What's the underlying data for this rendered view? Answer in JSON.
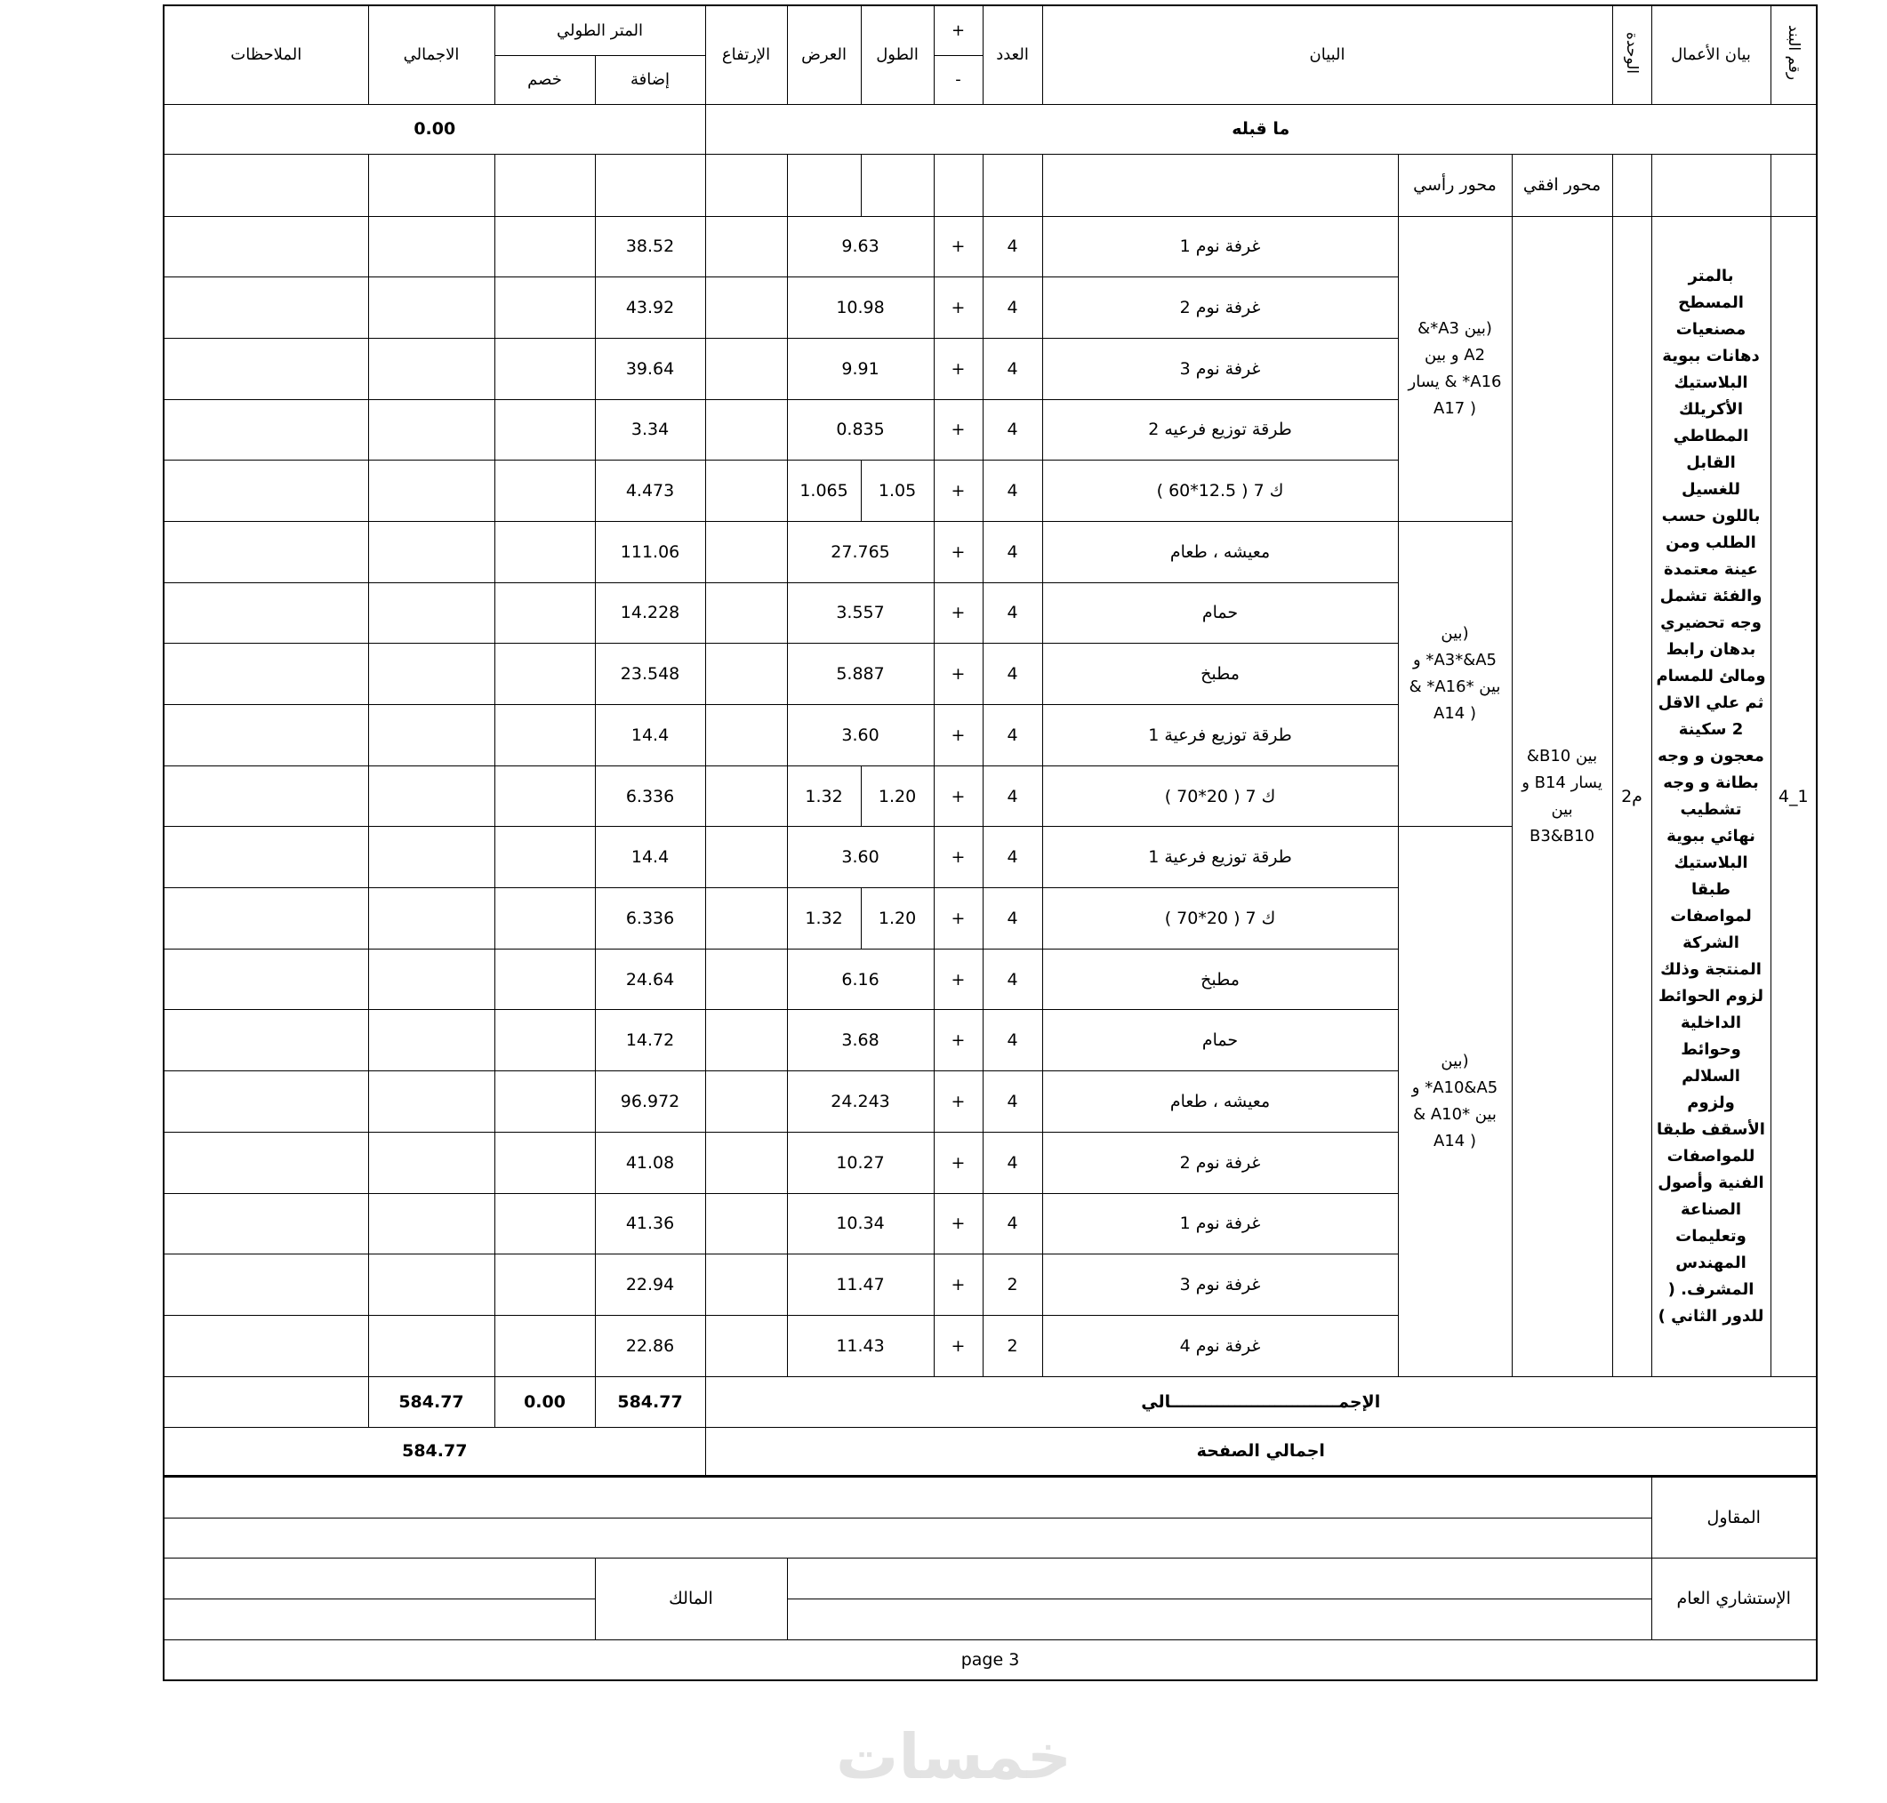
{
  "header": {
    "item_no": "رقم البند",
    "work_description": "بيان الأعمال",
    "unit": "الوحدة",
    "statement": "البيان",
    "count": "العدد",
    "plus": "+",
    "minus": "-",
    "length": "الطول",
    "width": "العرض",
    "height": "الإرتفاع",
    "linear_meter": "المتر الطولي",
    "addition": "إضافة",
    "deduction": "خصم",
    "total": "الاجمالي",
    "notes": "الملاحظات"
  },
  "previous": {
    "label": "ما قبله",
    "value": "0.00"
  },
  "axes_header": {
    "horizontal": "محور افقي",
    "vertical": "محور رأسي"
  },
  "item": {
    "number": "1_4",
    "unit": "م2",
    "description": "بالمتر المسطح مصنعيات دهانات ببوية البلاستيك الأكريلك المطاطي القابل للغسيل باللون حسب الطلب ومن عينة معتمدة والفئة تشمل وجه تحضيري بدهان رابط ومالئ للمسام ثم علي الاقل 2 سكينة معجون و وجه بطانة و وجه تشطيب نهائي ببوية البلاستيك طبقا لمواصفات الشركة المنتجة وذلك لزوم الحوائط الداخلية وحوائط السلالم ولزوم الأسقف طبقا للمواصفات الفنية وأصول الصناعة وتعليمات المهندس المشرف. ( للدور الثاني )",
    "horizontal_axis": "بين B10&\nيسار B14 و\nبين\nB3&B10",
    "vertical_axis_groups": [
      {
        "text": "(بين A3*&\nA2 و  بين\nA16* & يسار\n( A17",
        "rows": 5
      },
      {
        "text": "(بين\nA3*&A5* و\nبين *A16* &\n( A14",
        "rows": 5
      },
      {
        "text": "(بين\nA10&A5* و\nبين *A10 &\n( A14",
        "rows": 9
      }
    ]
  },
  "rows": [
    {
      "desc": "غرفة نوم 1",
      "count": "4",
      "sign": "+",
      "dim": "9.63",
      "add": "38.52"
    },
    {
      "desc": "غرفة نوم 2",
      "count": "4",
      "sign": "+",
      "dim": "10.98",
      "add": "43.92"
    },
    {
      "desc": "غرفة نوم 3",
      "count": "4",
      "sign": "+",
      "dim": "9.91",
      "add": "39.64"
    },
    {
      "desc": "طرقة توزيع فرعيه 2",
      "count": "4",
      "sign": "+",
      "dim": "0.835",
      "add": "3.34"
    },
    {
      "desc": "ك 7 ( 12.5*60 )",
      "count": "4",
      "sign": "+",
      "length": "1.05",
      "width": "1.065",
      "add": "4.473"
    },
    {
      "desc": "معيشه ، طعام",
      "count": "4",
      "sign": "+",
      "dim": "27.765",
      "add": "111.06"
    },
    {
      "desc": "حمام",
      "count": "4",
      "sign": "+",
      "dim": "3.557",
      "add": "14.228"
    },
    {
      "desc": "مطبخ",
      "count": "4",
      "sign": "+",
      "dim": "5.887",
      "add": "23.548"
    },
    {
      "desc": "طرقة توزيع فرعية 1",
      "count": "4",
      "sign": "+",
      "dim": "3.60",
      "add": "14.4"
    },
    {
      "desc": "ك 7 ( 20*70 )",
      "count": "4",
      "sign": "+",
      "length": "1.20",
      "width": "1.32",
      "add": "6.336"
    },
    {
      "desc": "طرقة توزيع فرعية 1",
      "count": "4",
      "sign": "+",
      "dim": "3.60",
      "add": "14.4"
    },
    {
      "desc": "ك 7 ( 20*70 )",
      "count": "4",
      "sign": "+",
      "length": "1.20",
      "width": "1.32",
      "add": "6.336"
    },
    {
      "desc": "مطبخ",
      "count": "4",
      "sign": "+",
      "dim": "6.16",
      "add": "24.64"
    },
    {
      "desc": "حمام",
      "count": "4",
      "sign": "+",
      "dim": "3.68",
      "add": "14.72"
    },
    {
      "desc": "معيشه ، طعام",
      "count": "4",
      "sign": "+",
      "dim": "24.243",
      "add": "96.972"
    },
    {
      "desc": "غرفة نوم 2",
      "count": "4",
      "sign": "+",
      "dim": "10.27",
      "add": "41.08"
    },
    {
      "desc": "غرفة نوم 1",
      "count": "4",
      "sign": "+",
      "dim": "10.34",
      "add": "41.36"
    },
    {
      "desc": "غرفة نوم 3",
      "count": "2",
      "sign": "+",
      "dim": "11.47",
      "add": "22.94"
    },
    {
      "desc": "غرفة نوم 4",
      "count": "2",
      "sign": "+",
      "dim": "11.43",
      "add": "22.86"
    }
  ],
  "totals": {
    "label": "الإجمـــــــــــــــــــــــــــــالي",
    "addition": "584.77",
    "deduction": "0.00",
    "total": "584.77",
    "page_total_label": "اجمالي الصفحة",
    "page_total": "584.77"
  },
  "footer": {
    "contractor": "المقاول",
    "consultant": "الإستشاري العام",
    "owner": "المالك",
    "page": "page 3"
  },
  "watermark": "خمسات"
}
